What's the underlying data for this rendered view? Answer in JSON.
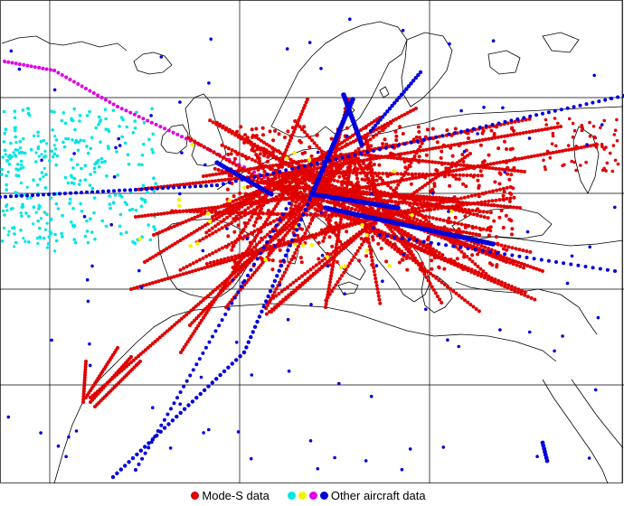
{
  "legend": {
    "mode_s_label": "Mode-S data",
    "other_label": "Other aircraft data",
    "mode_s_color": "#e00000",
    "other_colors": [
      "#00e5e5",
      "#f5f500",
      "#e000e0",
      "#0000dd"
    ]
  },
  "map": {
    "background": "#ffffff",
    "coastline_color": "#000000",
    "grid_color": "#000000",
    "grid": true
  }
}
